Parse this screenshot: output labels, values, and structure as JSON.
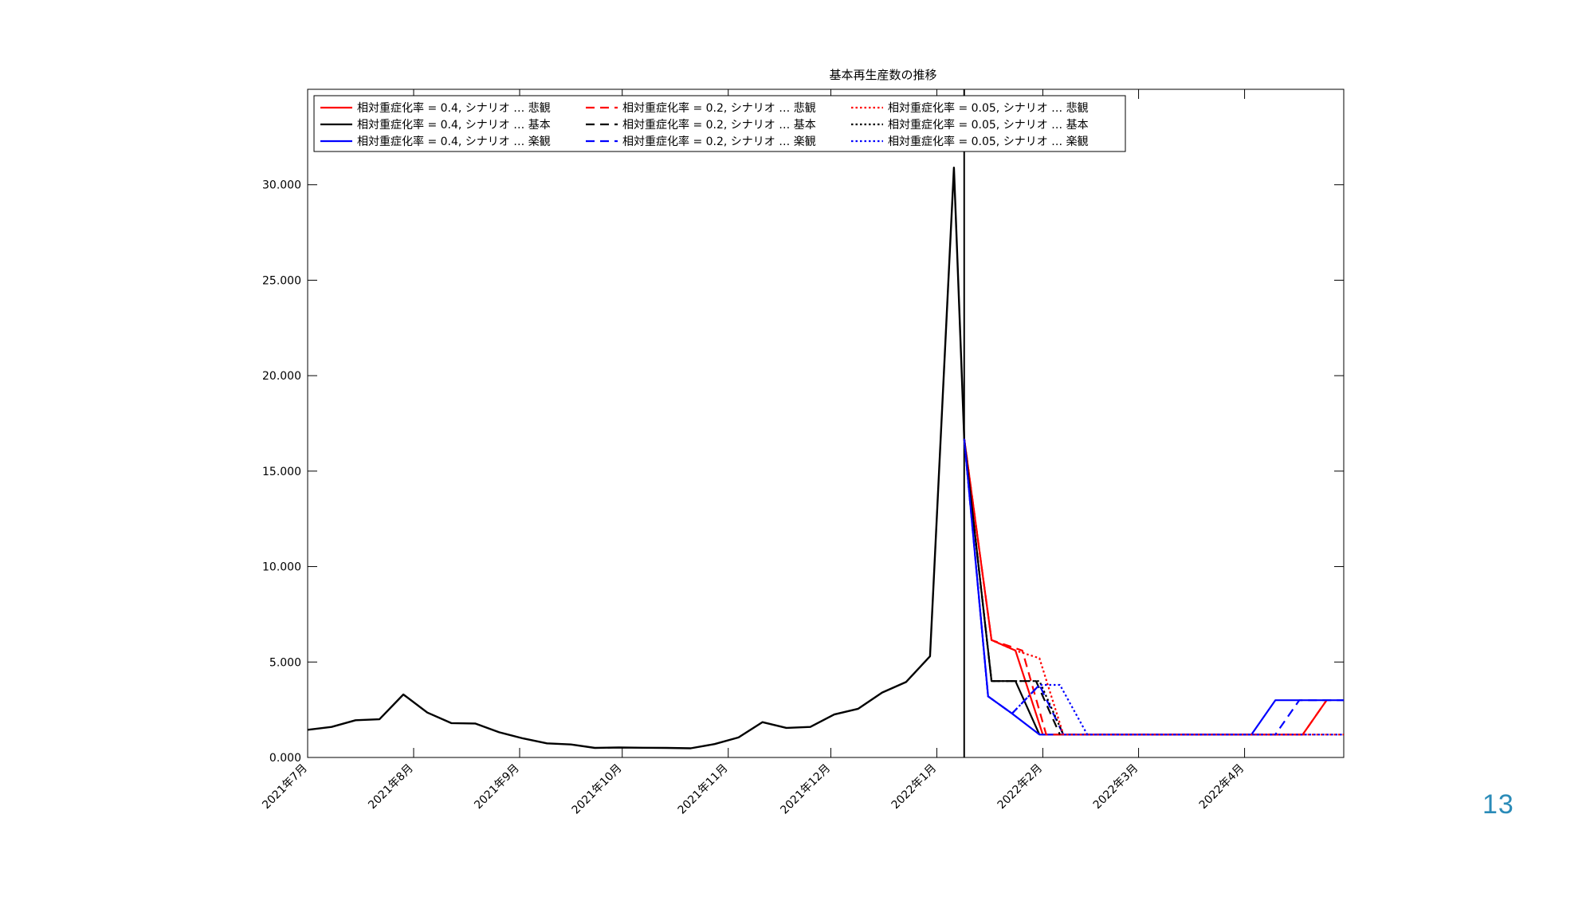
{
  "page": {
    "number": "13"
  },
  "chart_data": {
    "type": "line",
    "title": "基本再生産数の推移",
    "xlabel": "",
    "ylabel": "",
    "ylim": [
      0,
      35000
    ],
    "yticks": [
      0,
      5000,
      10000,
      15000,
      20000,
      25000,
      30000
    ],
    "ytick_labels": [
      "0.000",
      "5.000",
      "10.000",
      "15.000",
      "20.000",
      "25.000",
      "30.000"
    ],
    "xlim": [
      "2021-07-01",
      "2022-04-30"
    ],
    "xticks": [
      "2021-07-01",
      "2021-08-01",
      "2021-09-01",
      "2021-10-01",
      "2021-11-01",
      "2021-12-01",
      "2022-01-01",
      "2022-02-01",
      "2022-03-01",
      "2022-04-01"
    ],
    "xtick_labels": [
      "2021年7月",
      "2021年8月",
      "2021年9月",
      "2021年10月",
      "2021年11月",
      "2021年12月",
      "2022年1月",
      "2022年2月",
      "2022年3月",
      "2022年4月"
    ],
    "vline": {
      "x": "2022-01-09",
      "color": "#000000"
    },
    "grid": false,
    "legend_position": "top",
    "history": {
      "x": [
        "2021-07-01",
        "2021-07-08",
        "2021-07-15",
        "2021-07-22",
        "2021-07-29",
        "2021-08-05",
        "2021-08-12",
        "2021-08-19",
        "2021-08-26",
        "2021-09-02",
        "2021-09-09",
        "2021-09-16",
        "2021-09-23",
        "2021-09-30",
        "2021-10-07",
        "2021-10-14",
        "2021-10-21",
        "2021-10-28",
        "2021-11-04",
        "2021-11-11",
        "2021-11-18",
        "2021-11-25",
        "2021-12-02",
        "2021-12-09",
        "2021-12-16",
        "2021-12-23",
        "2021-12-30",
        "2022-01-06",
        "2022-01-09"
      ],
      "y": [
        1450,
        1600,
        1950,
        2000,
        3300,
        2350,
        1800,
        1780,
        1320,
        1000,
        740,
        680,
        500,
        520,
        510,
        500,
        480,
        700,
        1050,
        1850,
        1550,
        1600,
        2250,
        2550,
        3400,
        3950,
        5300,
        30900,
        16700
      ]
    },
    "series": [
      {
        "name": "相対重症化率 = 0.4, シナリオ … 悲観",
        "color": "#ff0000",
        "style": "solid",
        "x": [
          "2022-01-09",
          "2022-01-17",
          "2022-01-24",
          "2022-02-01",
          "2022-04-18",
          "2022-04-25"
        ],
        "y": [
          16700,
          6150,
          5600,
          1200,
          1200,
          3000
        ]
      },
      {
        "name": "相対重症化率 = 0.4, シナリオ … 基本",
        "color": "#000000",
        "style": "solid",
        "x": [
          "2022-01-09",
          "2022-01-17",
          "2022-01-24",
          "2022-01-31"
        ],
        "y": [
          16700,
          4000,
          4000,
          1200
        ]
      },
      {
        "name": "相対重症化率 = 0.4, シナリオ … 楽観",
        "color": "#0000ff",
        "style": "solid",
        "x": [
          "2022-01-09",
          "2022-01-16",
          "2022-01-23",
          "2022-01-31",
          "2022-04-03",
          "2022-04-10",
          "2022-04-30"
        ],
        "y": [
          16700,
          3200,
          2300,
          1200,
          1200,
          3000,
          3000
        ]
      },
      {
        "name": "相対重症化率 = 0.2, シナリオ … 悲観",
        "color": "#ff0000",
        "style": "dashed",
        "x": [
          "2022-01-09",
          "2022-01-17",
          "2022-01-26",
          "2022-02-02",
          "2022-04-18",
          "2022-04-25"
        ],
        "y": [
          16700,
          6150,
          5600,
          1200,
          1200,
          3000
        ]
      },
      {
        "name": "相対重症化率 = 0.2, シナリオ … 基本",
        "color": "#000000",
        "style": "dashed",
        "x": [
          "2022-01-09",
          "2022-01-17",
          "2022-01-24",
          "2022-01-30",
          "2022-02-06"
        ],
        "y": [
          16700,
          4000,
          4000,
          4000,
          1200
        ]
      },
      {
        "name": "相対重症化率 = 0.2, シナリオ … 楽観",
        "color": "#0000ff",
        "style": "dashed",
        "x": [
          "2022-01-09",
          "2022-01-16",
          "2022-01-23",
          "2022-01-31",
          "2022-02-07",
          "2022-04-10",
          "2022-04-17",
          "2022-04-30"
        ],
        "y": [
          16700,
          3200,
          2300,
          3800,
          1200,
          1200,
          3000,
          3000
        ]
      },
      {
        "name": "相対重症化率 = 0.05, シナリオ … 悲観",
        "color": "#ff0000",
        "style": "dotted",
        "x": [
          "2022-01-09",
          "2022-01-17",
          "2022-01-24",
          "2022-01-31",
          "2022-02-07",
          "2022-04-30"
        ],
        "y": [
          16700,
          6150,
          5600,
          5200,
          1200,
          1200
        ]
      },
      {
        "name": "相対重症化率 = 0.05, シナリオ … 基本",
        "color": "#000000",
        "style": "dotted",
        "x": [
          "2022-01-09",
          "2022-01-17",
          "2022-01-24",
          "2022-01-31",
          "2022-02-07"
        ],
        "y": [
          16700,
          4000,
          4000,
          4000,
          1200
        ]
      },
      {
        "name": "相対重症化率 = 0.05, シナリオ … 楽観",
        "color": "#0000ff",
        "style": "dotted",
        "x": [
          "2022-01-09",
          "2022-01-16",
          "2022-01-23",
          "2022-01-31",
          "2022-02-06",
          "2022-02-14",
          "2022-04-30"
        ],
        "y": [
          16700,
          3200,
          2300,
          3800,
          3800,
          1200,
          1200
        ]
      }
    ]
  }
}
